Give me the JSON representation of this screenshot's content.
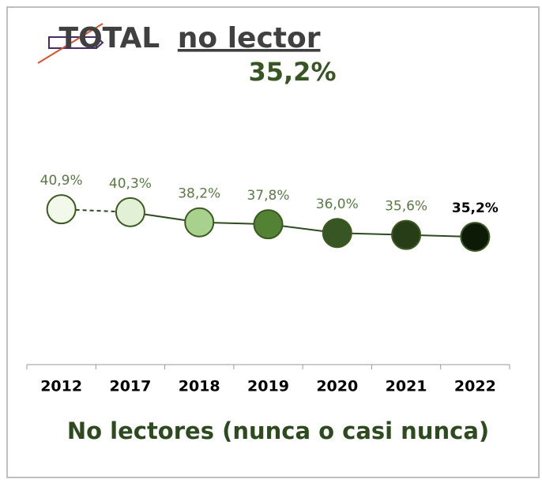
{
  "chart_data": {
    "type": "line",
    "title": "TOTAL",
    "title_underlined": "no lector",
    "subtitle": "35,2%",
    "xlabel": "No lectores (nunca o casi nunca)",
    "categories": [
      "2012",
      "2017",
      "2018",
      "2019",
      "2020",
      "2021",
      "2022"
    ],
    "values": [
      40.9,
      40.3,
      38.2,
      37.8,
      36.0,
      35.6,
      35.2
    ],
    "value_labels": [
      "40,9%",
      "40,3%",
      "38,2%",
      "37,8%",
      "36,0%",
      "35,6%",
      "35,2%"
    ],
    "marker_colors": [
      "#f2f8ea",
      "#e2f0d6",
      "#a9d18e",
      "#548235",
      "#375623",
      "#263d18",
      "#0d1a06"
    ],
    "label_colors": [
      "#5a7a44",
      "#5a7a44",
      "#5a7a44",
      "#5a7a44",
      "#5a7a44",
      "#5a7a44",
      "#000000"
    ],
    "color": "#2e4a1f",
    "dashed_segments": [
      0
    ],
    "ylim": [
      30,
      45
    ]
  }
}
